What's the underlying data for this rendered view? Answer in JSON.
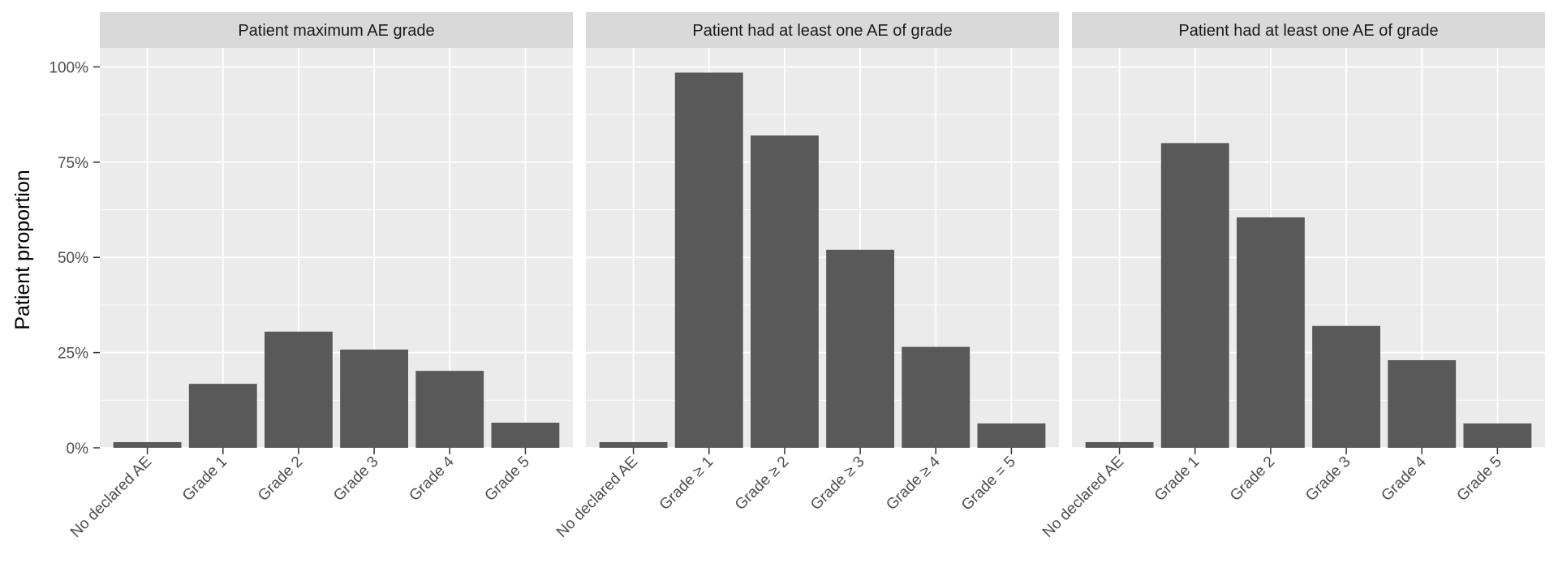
{
  "chart_data": {
    "type": "bar",
    "ylabel": "Patient proportion",
    "ylim": [
      0,
      1.05
    ],
    "y_ticks": [
      0,
      0.25,
      0.5,
      0.75,
      1.0
    ],
    "y_tick_labels": [
      "0%",
      "25%",
      "50%",
      "75%",
      "100%"
    ],
    "grid": true,
    "colors": {
      "panel_bg": "#ebebeb",
      "strip_bg": "#d9d9d9",
      "bar": "#595959",
      "grid": "#ffffff"
    },
    "panels": [
      {
        "title": "Patient maximum AE grade",
        "categories": [
          "No declared AE",
          "Grade 1",
          "Grade 2",
          "Grade 3",
          "Grade 4",
          "Grade 5"
        ],
        "values": [
          0.015,
          0.168,
          0.305,
          0.258,
          0.202,
          0.066
        ]
      },
      {
        "title": "Patient had at least one AE of grade",
        "categories": [
          "No declared AE",
          "Grade ≥ 1",
          "Grade ≥ 2",
          "Grade ≥ 3",
          "Grade ≥ 4",
          "Grade = 5"
        ],
        "values": [
          0.015,
          0.985,
          0.82,
          0.52,
          0.265,
          0.064
        ]
      },
      {
        "title": "Patient had at least one AE of grade",
        "categories": [
          "No declared AE",
          "Grade 1",
          "Grade 2",
          "Grade 3",
          "Grade 4",
          "Grade 5"
        ],
        "values": [
          0.015,
          0.8,
          0.605,
          0.32,
          0.23,
          0.064
        ]
      }
    ]
  }
}
